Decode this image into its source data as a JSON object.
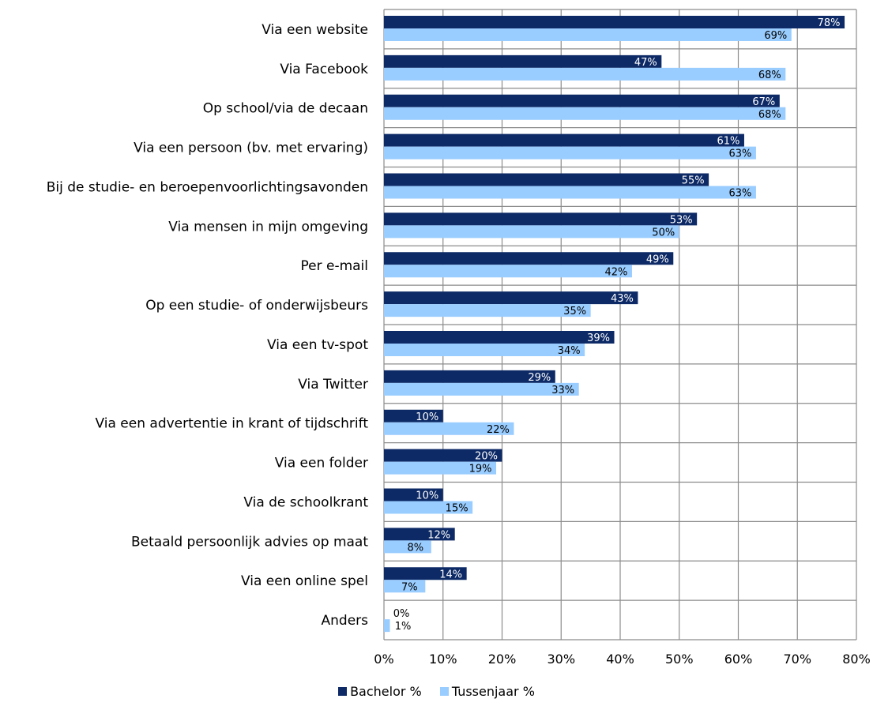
{
  "chart_data": {
    "type": "bar",
    "orientation": "horizontal",
    "categories": [
      "Via een website",
      "Via Facebook",
      "Op school/via de decaan",
      "Via een persoon (bv. met ervaring)",
      "Bij de studie- en beroepenvoorlichtingsavonden",
      "Via mensen in mijn omgeving",
      "Per e-mail",
      "Op een studie- of onderwijsbeurs",
      "Via een tv-spot",
      "Via Twitter",
      "Via een advertentie in krant of tijdschrift",
      "Via een folder",
      "Via de schoolkrant",
      "Betaald persoonlijk advies op maat",
      "Via een online spel",
      "Anders"
    ],
    "series": [
      {
        "name": "Bachelor %",
        "color": "#0d2a66",
        "label_color": "#ffffff",
        "values": [
          78,
          47,
          67,
          61,
          55,
          53,
          49,
          43,
          39,
          29,
          10,
          20,
          10,
          12,
          14,
          0
        ],
        "labels": [
          "78%",
          "47%",
          "67%",
          "61%",
          "55%",
          "53%",
          "49%",
          "43%",
          "39%",
          "29%",
          "10%",
          "20%",
          "10%",
          "12%",
          "14%",
          "0%"
        ]
      },
      {
        "name": "Tussenjaar %",
        "color": "#99ccff",
        "label_color": "#000000",
        "values": [
          69,
          68,
          68,
          63,
          63,
          50,
          42,
          35,
          34,
          33,
          22,
          19,
          15,
          8,
          7,
          1
        ],
        "labels": [
          "69%",
          "68%",
          "68%",
          "63%",
          "63%",
          "50%",
          "42%",
          "35%",
          "34%",
          "33%",
          "22%",
          "19%",
          "15%",
          "8%",
          "7%",
          "1%"
        ]
      }
    ],
    "xlim": [
      0,
      80
    ],
    "xticks": [
      0,
      10,
      20,
      30,
      40,
      50,
      60,
      70,
      80
    ],
    "xtick_labels": [
      "0%",
      "10%",
      "20%",
      "30%",
      "40%",
      "50%",
      "60%",
      "70%",
      "80%"
    ],
    "grid": true,
    "legend_position": "bottom",
    "title": "",
    "xlabel": "",
    "ylabel": ""
  }
}
